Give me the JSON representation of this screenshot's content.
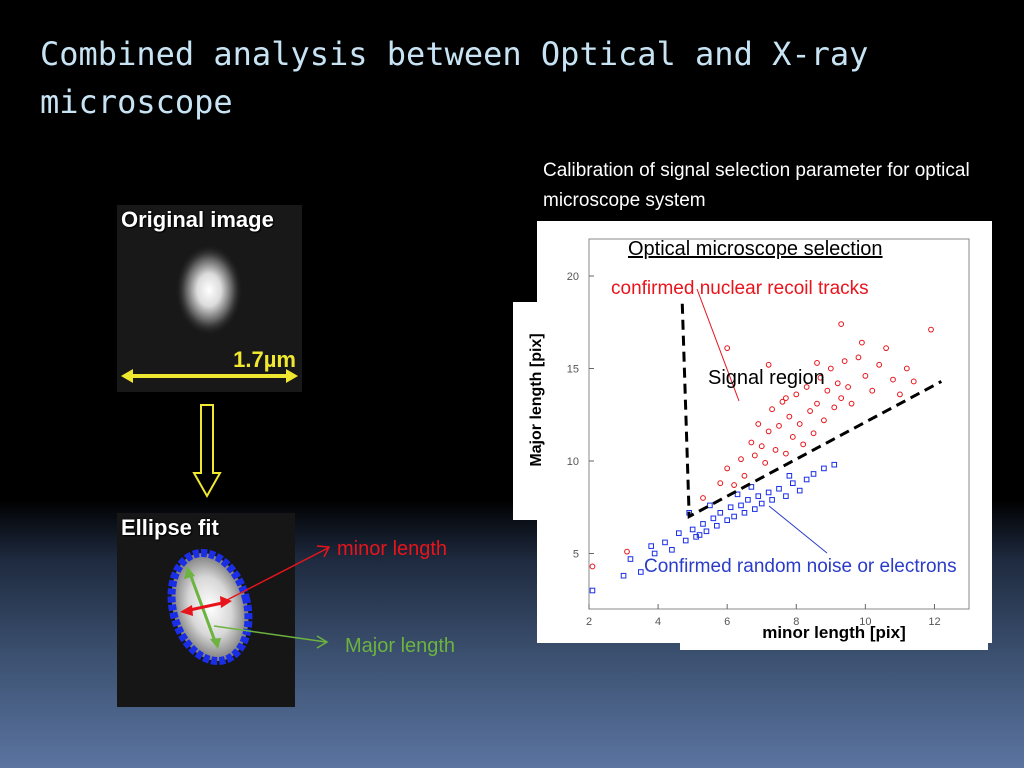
{
  "slide": {
    "title": "Combined analysis between Optical and X-ray microscope",
    "caption": "Calibration  of signal selection parameter for optical microscope system"
  },
  "left": {
    "original_label": "Original image",
    "scale_label": "1.7µm",
    "ellipse_label": "Ellipse fit",
    "minor_label": "minor length",
    "major_label": "Major length",
    "colors": {
      "minor": "#e8141c",
      "major": "#6cb33f",
      "arrow": "#f0e830",
      "ellipse": "#1a2ee8"
    }
  },
  "plot": {
    "title": "Optical microscope selection",
    "annotation_red": "confirmed nuclear recoil tracks",
    "annotation_signal": "Signal region",
    "annotation_blue": "Confirmed random noise or electrons",
    "xlabel": "minor length [pix]",
    "ylabel": "Major length [pix]"
  },
  "chart_data": {
    "type": "scatter",
    "xlim": [
      2,
      13
    ],
    "ylim": [
      2,
      22
    ],
    "xticks": [
      "2",
      "4",
      "6",
      "8",
      "10",
      "12"
    ],
    "yticks": [
      "5",
      "10",
      "15",
      "20"
    ],
    "xtick_values": [
      2,
      4,
      6,
      8,
      10,
      12
    ],
    "ytick_values": [
      5,
      10,
      15,
      20
    ],
    "grid": false,
    "selection_line": [
      [
        4.7,
        18.5
      ],
      [
        4.9,
        7.0
      ],
      [
        12.2,
        14.3
      ]
    ],
    "series": [
      {
        "marker": "circle",
        "color": "#e8141c",
        "points": [
          [
            5.3,
            8.0
          ],
          [
            5.8,
            8.8
          ],
          [
            6.0,
            9.6
          ],
          [
            6.2,
            8.7
          ],
          [
            6.4,
            10.1
          ],
          [
            6.5,
            9.2
          ],
          [
            6.7,
            11.0
          ],
          [
            6.8,
            10.3
          ],
          [
            6.9,
            12.0
          ],
          [
            7.0,
            10.8
          ],
          [
            7.1,
            9.9
          ],
          [
            7.2,
            11.6
          ],
          [
            7.3,
            12.8
          ],
          [
            7.4,
            10.6
          ],
          [
            7.5,
            11.9
          ],
          [
            7.6,
            13.2
          ],
          [
            7.7,
            10.4
          ],
          [
            7.8,
            12.4
          ],
          [
            7.9,
            11.3
          ],
          [
            8.0,
            13.6
          ],
          [
            8.1,
            12.0
          ],
          [
            8.2,
            10.9
          ],
          [
            8.3,
            14.0
          ],
          [
            8.4,
            12.7
          ],
          [
            8.5,
            11.5
          ],
          [
            8.6,
            13.1
          ],
          [
            8.7,
            14.5
          ],
          [
            8.8,
            12.2
          ],
          [
            8.9,
            13.8
          ],
          [
            9.0,
            15.0
          ],
          [
            9.1,
            12.9
          ],
          [
            9.2,
            14.2
          ],
          [
            9.3,
            13.4
          ],
          [
            9.4,
            15.4
          ],
          [
            9.5,
            14.0
          ],
          [
            9.6,
            13.1
          ],
          [
            9.8,
            15.6
          ],
          [
            10.0,
            14.6
          ],
          [
            10.2,
            13.8
          ],
          [
            10.4,
            15.2
          ],
          [
            10.6,
            16.1
          ],
          [
            10.8,
            14.4
          ],
          [
            11.0,
            13.6
          ],
          [
            11.2,
            15.0
          ],
          [
            11.4,
            14.3
          ],
          [
            6.0,
            16.1
          ],
          [
            7.2,
            15.2
          ],
          [
            9.3,
            17.4
          ],
          [
            11.9,
            17.1
          ],
          [
            2.1,
            4.3
          ],
          [
            3.1,
            5.1
          ],
          [
            7.7,
            13.4
          ],
          [
            8.6,
            15.3
          ],
          [
            9.9,
            16.4
          ]
        ]
      },
      {
        "marker": "square",
        "color": "#1a2ee8",
        "points": [
          [
            2.1,
            3.0
          ],
          [
            3.0,
            3.8
          ],
          [
            3.2,
            4.7
          ],
          [
            3.5,
            4.0
          ],
          [
            3.9,
            5.0
          ],
          [
            4.2,
            5.6
          ],
          [
            4.4,
            5.2
          ],
          [
            4.6,
            6.1
          ],
          [
            4.8,
            5.7
          ],
          [
            5.0,
            6.3
          ],
          [
            5.1,
            5.9
          ],
          [
            5.3,
            6.6
          ],
          [
            5.4,
            6.2
          ],
          [
            5.6,
            6.9
          ],
          [
            5.7,
            6.5
          ],
          [
            5.8,
            7.2
          ],
          [
            6.0,
            6.8
          ],
          [
            6.1,
            7.5
          ],
          [
            6.2,
            7.0
          ],
          [
            6.4,
            7.6
          ],
          [
            6.5,
            7.2
          ],
          [
            6.6,
            7.9
          ],
          [
            6.8,
            7.4
          ],
          [
            6.9,
            8.1
          ],
          [
            7.0,
            7.7
          ],
          [
            7.2,
            8.3
          ],
          [
            7.3,
            7.9
          ],
          [
            7.5,
            8.5
          ],
          [
            7.7,
            8.1
          ],
          [
            7.9,
            8.8
          ],
          [
            8.1,
            8.4
          ],
          [
            8.3,
            9.0
          ],
          [
            8.5,
            9.3
          ],
          [
            8.8,
            9.6
          ],
          [
            9.1,
            9.8
          ],
          [
            5.5,
            7.6
          ],
          [
            6.3,
            8.2
          ],
          [
            4.9,
            7.2
          ],
          [
            3.8,
            5.4
          ],
          [
            5.2,
            6.0
          ],
          [
            6.7,
            8.6
          ],
          [
            7.8,
            9.2
          ]
        ]
      }
    ]
  }
}
